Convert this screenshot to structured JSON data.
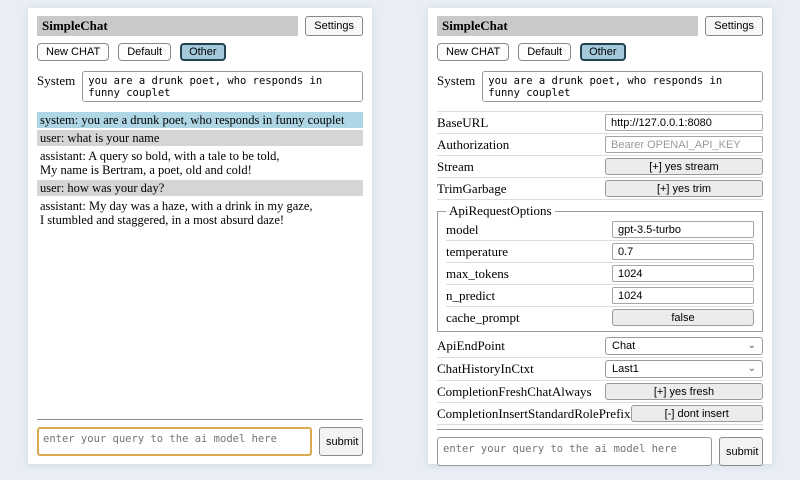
{
  "colors": {
    "page_background": "#e9eef5",
    "titlebar_bg": "#c9c9c9",
    "active_session_bg": "#a3c8da",
    "active_session_border": "#22424f",
    "system_msg_bg": "#aed6e4",
    "user_msg_bg": "#d5d5d5",
    "toggle_button_bg": "#ececec",
    "focused_input_border": "#dba94e"
  },
  "common": {
    "title": "SimpleChat",
    "settings_button": "Settings",
    "new_chat_button": "New CHAT",
    "session_default": "Default",
    "session_other": "Other",
    "system_label": "System",
    "system_prompt": "you are a drunk poet, who responds in funny couplet",
    "query_placeholder": "enter your query to the ai model here",
    "submit_button": "submit"
  },
  "chat": {
    "messages": [
      {
        "role": "system",
        "text": "system: you are a drunk poet, who responds in funny couplet"
      },
      {
        "role": "user",
        "text": "user: what is your name"
      },
      {
        "role": "assistant",
        "text": "assistant: A query so bold, with a tale to be told,\nMy name is Bertram, a poet, old and cold!"
      },
      {
        "role": "user",
        "text": "user: how was your day?"
      },
      {
        "role": "assistant",
        "text": "assistant: My day was a haze, with a drink in my gaze,\nI stumbled and staggered, in a most absurd daze!"
      }
    ]
  },
  "settings": {
    "rows": [
      {
        "label": "BaseURL",
        "type": "input",
        "value": "http://127.0.0.1:8080"
      },
      {
        "label": "Authorization",
        "type": "input",
        "placeholder": "Bearer OPENAI_API_KEY"
      },
      {
        "label": "Stream",
        "type": "button",
        "value": "[+] yes stream"
      },
      {
        "label": "TrimGarbage",
        "type": "button",
        "value": "[+] yes trim"
      }
    ],
    "fieldset": {
      "legend": "ApiRequestOptions",
      "rows": [
        {
          "label": "model",
          "type": "input",
          "value": "gpt-3.5-turbo"
        },
        {
          "label": "temperature",
          "type": "input",
          "value": "0.7"
        },
        {
          "label": "max_tokens",
          "type": "input",
          "value": "1024"
        },
        {
          "label": "n_predict",
          "type": "input",
          "value": "1024"
        },
        {
          "label": "cache_prompt",
          "type": "button",
          "value": "false"
        }
      ]
    },
    "rows_after": [
      {
        "label": "ApiEndPoint",
        "type": "select",
        "value": "Chat"
      },
      {
        "label": "ChatHistoryInCtxt",
        "type": "select",
        "value": "Last1"
      },
      {
        "label": "CompletionFreshChatAlways",
        "type": "button",
        "value": "[+] yes fresh"
      },
      {
        "label": "CompletionInsertStandardRolePrefix",
        "type": "button",
        "value": "[-] dont insert"
      }
    ]
  }
}
